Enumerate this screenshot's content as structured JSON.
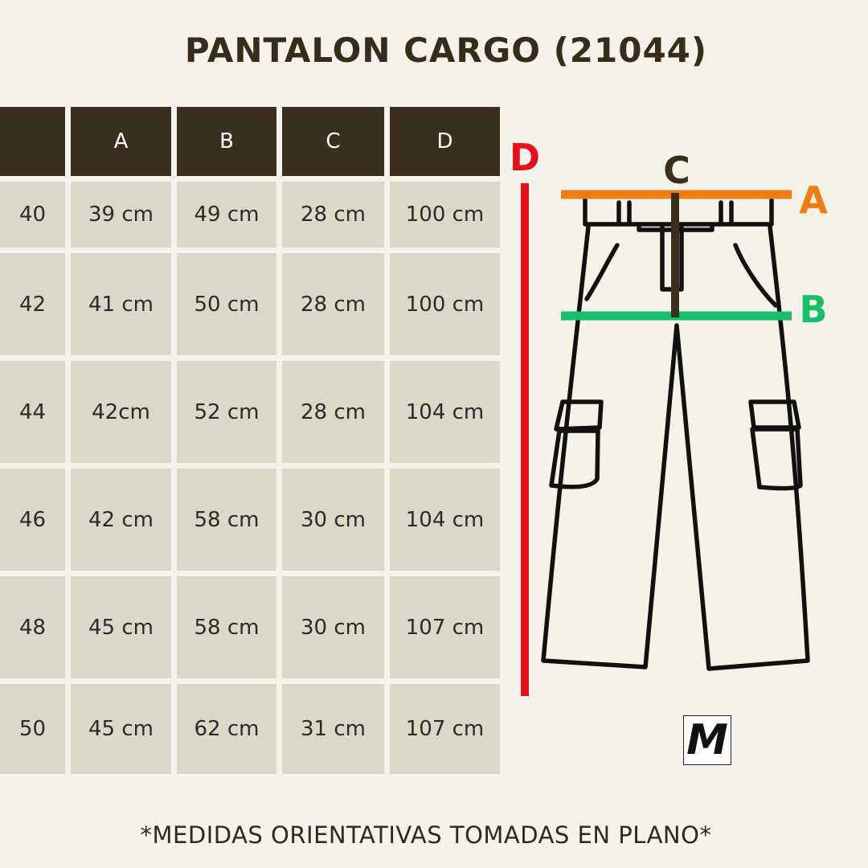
{
  "title": "PANTALON CARGO (21044)",
  "table": {
    "headers": [
      "",
      "A",
      "B",
      "C",
      "D"
    ],
    "rows": [
      [
        "40",
        "39 cm",
        "49 cm",
        "28 cm",
        "100 cm"
      ],
      [
        "42",
        "41 cm",
        "50 cm",
        "28 cm",
        "100 cm"
      ],
      [
        "44",
        "42cm",
        "52 cm",
        "28 cm",
        "104 cm"
      ],
      [
        "46",
        "42 cm",
        "58 cm",
        "30 cm",
        "104 cm"
      ],
      [
        "48",
        "45 cm",
        "58 cm",
        "30 cm",
        "107 cm"
      ],
      [
        "50",
        "45 cm",
        "62 cm",
        "31 cm",
        "107 cm"
      ]
    ]
  },
  "diagram": {
    "labels": {
      "a": "A",
      "b": "B",
      "c": "C",
      "d": "D"
    },
    "colors": {
      "a": "#f07d0f",
      "b": "#16c06a",
      "c": "#3a2f1c",
      "d": "#e4101b"
    },
    "logo": "M"
  },
  "footer": "*MEDIDAS ORIENTATIVAS TOMADAS EN PLANO*"
}
